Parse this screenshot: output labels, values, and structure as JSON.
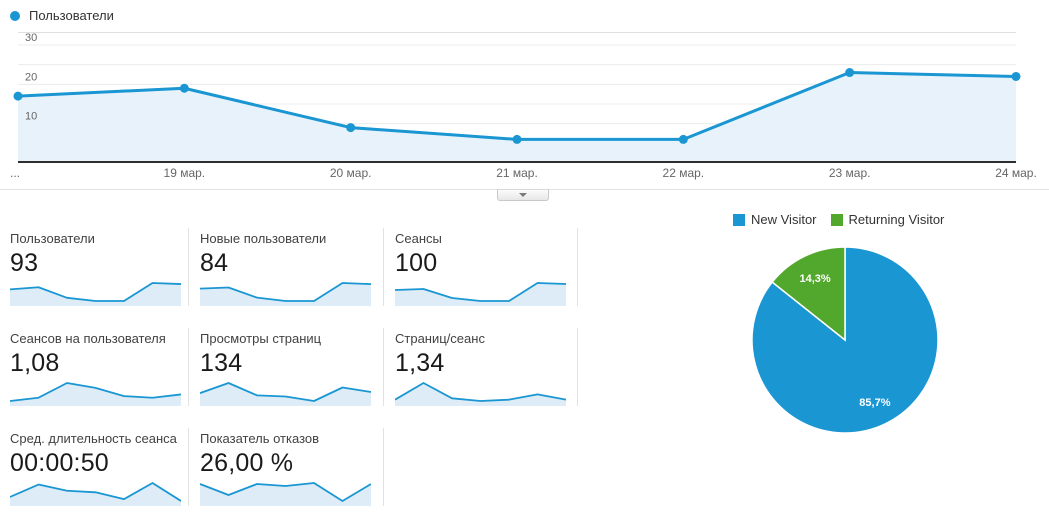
{
  "colors": {
    "line_blue": "#1a96d2",
    "area_fill": "#e8f2fa",
    "spark_fill": "#ddecf7",
    "pie_blue": "#1a96d2",
    "pie_green": "#52a82c",
    "grid_line": "#ececec",
    "plot_top_border": "#e0e0e0",
    "axis_line": "#2e2e2e",
    "label_gray": "#666666"
  },
  "chart_data": [
    {
      "id": "users_timeline",
      "type": "line",
      "title": "Пользователи",
      "x": [
        "...",
        "19 мар.",
        "20 мар.",
        "21 мар.",
        "22 мар.",
        "23 мар.",
        "24 мар."
      ],
      "values": [
        17,
        19,
        9,
        6,
        6,
        23,
        22
      ],
      "ylim": [
        0,
        33.3
      ],
      "y_ticks": [
        10,
        20,
        30
      ],
      "grid_step": 5,
      "legend": [
        "Пользователи"
      ],
      "legend_position": "top-left",
      "grid": true
    },
    {
      "id": "visitor_type_pie",
      "type": "pie",
      "legend": [
        "New Visitor",
        "Returning Visitor"
      ],
      "legend_position": "top",
      "slices": [
        {
          "label": "New Visitor",
          "value": 85.7,
          "display": "85,7%",
          "color": "#1a96d2"
        },
        {
          "label": "Returning Visitor",
          "value": 14.3,
          "display": "14,3%",
          "color": "#52a82c"
        }
      ]
    }
  ],
  "metrics": [
    {
      "label": "Пользователи",
      "value": "93",
      "spark": [
        17,
        19,
        9,
        6,
        6,
        23,
        22
      ]
    },
    {
      "label": "Новые пользователи",
      "value": "84",
      "spark": [
        16,
        17,
        8,
        5,
        5,
        21,
        20
      ]
    },
    {
      "label": "Сеансы",
      "value": "100",
      "spark": [
        18,
        19,
        10,
        7,
        7,
        25,
        24
      ]
    },
    {
      "label": "Сеансов на пользователя",
      "value": "1,08",
      "spark": [
        1.02,
        1.04,
        1.13,
        1.1,
        1.05,
        1.04,
        1.06
      ]
    },
    {
      "label": "Просмотры страниц",
      "value": "134",
      "spark": [
        19,
        28,
        17,
        16,
        12,
        24,
        20
      ]
    },
    {
      "label": "Страниц/сеанс",
      "value": "1,34",
      "spark": [
        1.3,
        1.55,
        1.32,
        1.28,
        1.3,
        1.38,
        1.3
      ]
    },
    {
      "label": "Сред. длительность сеанса",
      "value": "00:00:50",
      "spark": [
        35,
        75,
        55,
        50,
        28,
        80,
        22
      ]
    },
    {
      "label": "Показатель отказов",
      "value": "26,00 %",
      "spark": [
        32,
        21,
        32,
        30,
        33,
        15,
        32
      ]
    }
  ],
  "collapse_button": {
    "icon": "caret-down"
  }
}
